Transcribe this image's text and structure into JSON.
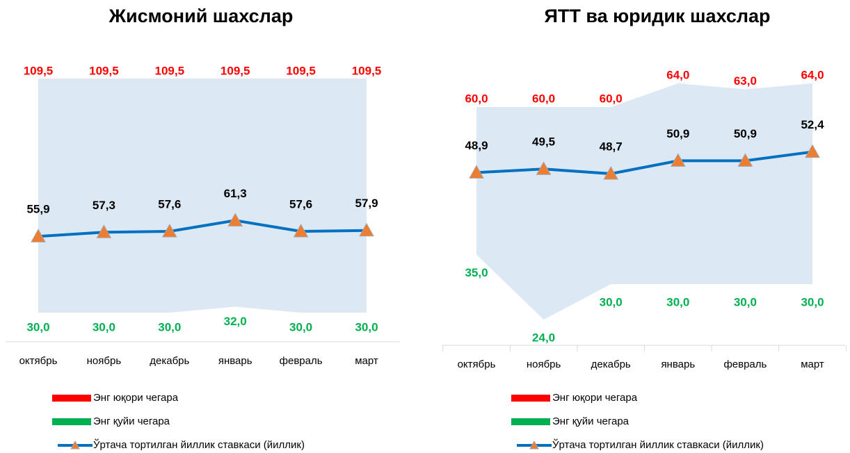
{
  "chart_data": [
    {
      "type": "line",
      "title": "Жисмоний шахслар",
      "categories": [
        "октябрь",
        "ноябрь",
        "декабрь",
        "январь",
        "февраль",
        "март"
      ],
      "series": [
        {
          "name": "Энг юқори чегара",
          "color": "#ff0000",
          "values": [
            109.5,
            109.5,
            109.5,
            109.5,
            109.5,
            109.5
          ],
          "value_labels": [
            "109,5",
            "109,5",
            "109,5",
            "109,5",
            "109,5",
            "109,5"
          ]
        },
        {
          "name": "Энг қуйи чегара",
          "color": "#00b050",
          "values": [
            30,
            30,
            30,
            32,
            30,
            30
          ],
          "value_labels": [
            "30,0",
            "30,0",
            "30,0",
            "32,0",
            "30,0",
            "30,0"
          ]
        },
        {
          "name": "Ўртача тортилган йиллик ставкаси (йиллик)",
          "color": "#0070c0",
          "values": [
            55.9,
            57.3,
            57.6,
            61.3,
            57.6,
            57.9
          ],
          "value_labels": [
            "55,9",
            "57,3",
            "57,6",
            "61,3",
            "57,6",
            "57,9"
          ]
        }
      ]
    },
    {
      "type": "line",
      "title": "ЯТТ ва юридик шахслар",
      "categories": [
        "октябрь",
        "ноябрь",
        "декабрь",
        "январь",
        "февраль",
        "март"
      ],
      "series": [
        {
          "name": "Энг юқори чегара",
          "color": "#ff0000",
          "values": [
            60,
            60,
            60,
            64,
            63,
            64
          ],
          "value_labels": [
            "60,0",
            "60,0",
            "60,0",
            "64,0",
            "63,0",
            "64,0"
          ]
        },
        {
          "name": "Энг қуйи чегара",
          "color": "#00b050",
          "values": [
            35,
            24,
            30,
            30,
            30,
            30
          ],
          "value_labels": [
            "35,0",
            "24,0",
            "30,0",
            "30,0",
            "30,0",
            "30,0"
          ]
        },
        {
          "name": "Ўртача тортилган йиллик ставкаси (йиллик)",
          "color": "#0070c0",
          "values": [
            48.9,
            49.5,
            48.7,
            50.9,
            50.9,
            52.4
          ],
          "value_labels": [
            "48,9",
            "49,5",
            "48,7",
            "50,9",
            "50,9",
            "52,4"
          ]
        }
      ]
    }
  ]
}
